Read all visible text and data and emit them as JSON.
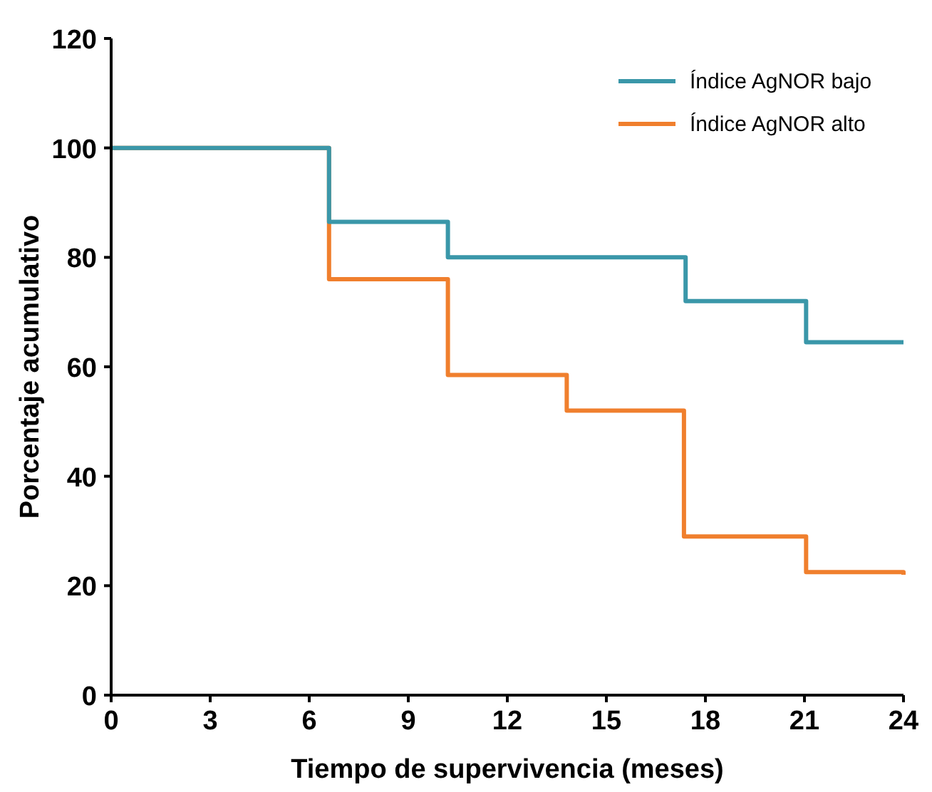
{
  "chart_data": {
    "type": "step",
    "xlabel": "Tiempo de supervivencia (meses)",
    "ylabel": "Porcentaje acumulativo",
    "xlim": [
      0,
      24
    ],
    "xticks": [
      0,
      3,
      6,
      9,
      12,
      15,
      18,
      21,
      24
    ],
    "ylim": [
      0,
      120
    ],
    "yticks": [
      0,
      20,
      40,
      60,
      80,
      100,
      120
    ],
    "grid": false,
    "legend": "top right",
    "line_style": "solid",
    "marker": "none",
    "series": [
      {
        "name": "Índice AgNOR bajo",
        "color": "#3a97a9",
        "x": [
          0,
          6.6,
          10.2,
          17.4,
          21.05,
          24
        ],
        "values": [
          100,
          86.5,
          80,
          72,
          64.5,
          64.5
        ]
      },
      {
        "name": "Índice AgNOR alto",
        "color": "#f07f2d",
        "x": [
          0,
          6.6,
          10.2,
          13.8,
          17.35,
          21.05,
          24
        ],
        "values": [
          100,
          76,
          58.5,
          52,
          29,
          22.5,
          22
        ]
      }
    ]
  }
}
